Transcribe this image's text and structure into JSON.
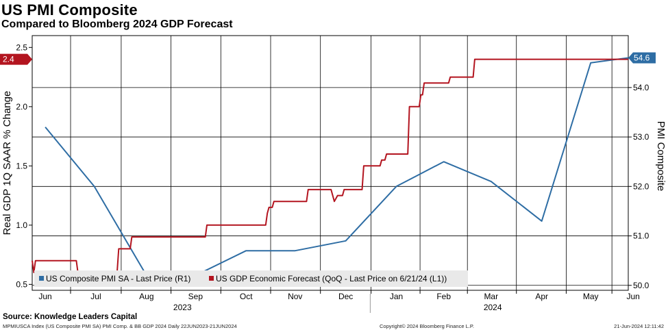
{
  "title": "US PMI Composite",
  "subtitle": "Compared to Bloomberg 2024 GDP Forecast",
  "source": "Source: Knowledge Leaders Capital",
  "footer": {
    "left": "MPMIUSCA Index (US Composite PMI SA) PMI Comp. & BB GDP 2024  Daily 22JUN2023-21JUN2024",
    "mid": "Copyright© 2024 Bloomberg Finance L.P.",
    "right": "21-Jun-2024 12:11:42"
  },
  "colors": {
    "pmi": "#2e6da4",
    "gdp": "#b3141f",
    "grid": "#000000"
  },
  "chart_data": {
    "type": "line",
    "x_range": [
      0,
      365
    ],
    "x_ticks": [
      {
        "x": 8,
        "label": "Jun"
      },
      {
        "x": 39,
        "label": "Jul"
      },
      {
        "x": 70,
        "label": "Aug"
      },
      {
        "x": 100,
        "label": "Sep"
      },
      {
        "x": 131,
        "label": "Oct"
      },
      {
        "x": 161,
        "label": "Nov"
      },
      {
        "x": 192,
        "label": "Dec"
      },
      {
        "x": 223,
        "label": "Jan"
      },
      {
        "x": 252,
        "label": "Feb"
      },
      {
        "x": 281,
        "label": "Mar"
      },
      {
        "x": 312,
        "label": "Apr"
      },
      {
        "x": 342,
        "label": "May"
      },
      {
        "x": 368,
        "label": "Jun"
      }
    ],
    "year_labels": [
      {
        "x": 92,
        "label": "2023"
      },
      {
        "x": 282,
        "label": "2024"
      }
    ],
    "year_divider_x": 207,
    "left_axis": {
      "label": "Real GDP 1Q SAAR % Change",
      "range": [
        0.45,
        2.6
      ],
      "ticks": [
        "0.5",
        "1.0",
        "1.5",
        "2.0",
        "2.5"
      ]
    },
    "right_axis": {
      "label": "PMI Composite",
      "range": [
        49.9,
        55.05
      ],
      "ticks": [
        "50.0",
        "51.0",
        "52.0",
        "53.0",
        "54.0"
      ]
    },
    "series": [
      {
        "name": "US Composite PMI SA - Last Price (R1)",
        "axis": "right",
        "last_value": "54.6",
        "points": [
          [
            8,
            53.2
          ],
          [
            38,
            52.0
          ],
          [
            70,
            50.2
          ],
          [
            100,
            50.2
          ],
          [
            131,
            50.7
          ],
          [
            161,
            50.7
          ],
          [
            192,
            50.9
          ],
          [
            223,
            52.0
          ],
          [
            252,
            52.5
          ],
          [
            281,
            52.1
          ],
          [
            312,
            51.3
          ],
          [
            342,
            54.5
          ],
          [
            365,
            54.6
          ]
        ]
      },
      {
        "name": "US GDP Economic Forecast (QoQ - Last Price on 6/21/24 (L1))",
        "axis": "left",
        "last_value": "2.4",
        "points": [
          [
            0,
            0.7
          ],
          [
            1,
            0.6
          ],
          [
            2,
            0.7
          ],
          [
            27,
            0.7
          ],
          [
            28,
            0.6
          ],
          [
            52,
            0.6
          ],
          [
            53,
            0.8
          ],
          [
            60,
            0.8
          ],
          [
            61,
            0.9
          ],
          [
            106,
            0.9
          ],
          [
            107,
            1.0
          ],
          [
            143,
            1.0
          ],
          [
            144,
            1.1
          ],
          [
            145,
            1.15
          ],
          [
            147,
            1.15
          ],
          [
            148,
            1.2
          ],
          [
            168,
            1.2
          ],
          [
            169,
            1.3
          ],
          [
            183,
            1.3
          ],
          [
            185,
            1.2
          ],
          [
            187,
            1.25
          ],
          [
            190,
            1.25
          ],
          [
            191,
            1.3
          ],
          [
            202,
            1.3
          ],
          [
            203,
            1.5
          ],
          [
            213,
            1.5
          ],
          [
            214,
            1.55
          ],
          [
            216,
            1.55
          ],
          [
            217,
            1.6
          ],
          [
            230,
            1.6
          ],
          [
            231,
            2.0
          ],
          [
            237,
            2.0
          ],
          [
            238,
            2.1
          ],
          [
            239,
            2.1
          ],
          [
            240,
            2.2
          ],
          [
            255,
            2.2
          ],
          [
            256,
            2.25
          ],
          [
            270,
            2.25
          ],
          [
            271,
            2.4
          ],
          [
            365,
            2.4
          ]
        ]
      }
    ],
    "legend_position": "bottom-left",
    "grid": true
  }
}
